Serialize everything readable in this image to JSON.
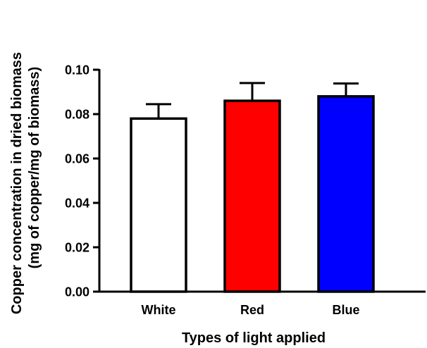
{
  "chart_data": {
    "type": "bar",
    "title": "",
    "xlabel": "Types of light applied",
    "ylabel_line1": "Copper concentration in dried biomass",
    "ylabel_line2": "(mg of copper/mg of biomass)",
    "categories": [
      "White",
      "Red",
      "Blue"
    ],
    "values": [
      0.078,
      0.086,
      0.088
    ],
    "errors": [
      0.0065,
      0.008,
      0.0058
    ],
    "colors": [
      "#ffffff",
      "#ff0000",
      "#0000ff"
    ],
    "ylim": [
      0,
      0.1
    ],
    "yticks": [
      "0.00",
      "0.02",
      "0.04",
      "0.06",
      "0.08",
      "0.10"
    ],
    "grid": false
  }
}
